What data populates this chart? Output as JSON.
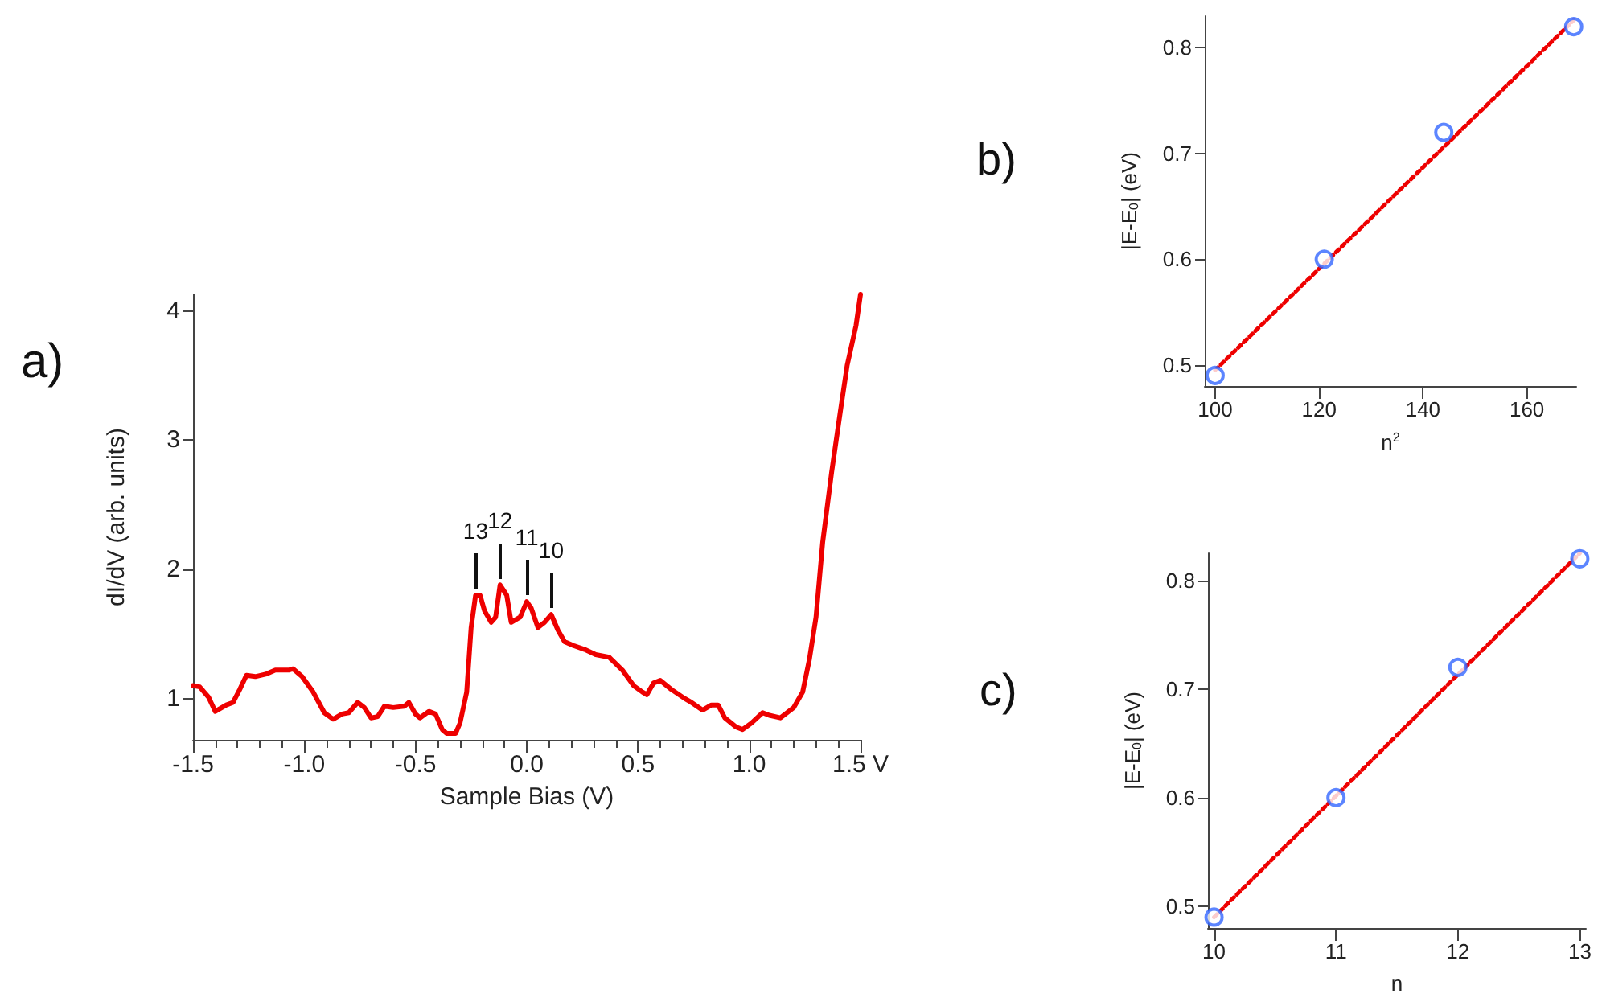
{
  "chart_data": [
    {
      "type": "line",
      "title": "a)",
      "xlabel": "Sample Bias (V)",
      "ylabel": "dI/dV (arb. units)",
      "color": "#ee0000",
      "marker": "none",
      "line_style": "solid",
      "x": [
        -1.5,
        -1.47,
        -1.43,
        -1.4,
        -1.35,
        -1.32,
        -1.29,
        -1.26,
        -1.22,
        -1.17,
        -1.13,
        -1.07,
        -1.05,
        -1.01,
        -0.96,
        -0.91,
        -0.87,
        -0.83,
        -0.8,
        -0.76,
        -0.73,
        -0.7,
        -0.67,
        -0.64,
        -0.6,
        -0.55,
        -0.53,
        -0.5,
        -0.48,
        -0.44,
        -0.41,
        -0.38,
        -0.36,
        -0.32,
        -0.3,
        -0.27,
        -0.25,
        -0.23,
        -0.21,
        -0.19,
        -0.16,
        -0.14,
        -0.12,
        -0.09,
        -0.07,
        -0.03,
        0.0,
        0.02,
        0.05,
        0.08,
        0.11,
        0.14,
        0.17,
        0.21,
        0.26,
        0.31,
        0.37,
        0.43,
        0.48,
        0.52,
        0.54,
        0.57,
        0.6,
        0.65,
        0.71,
        0.74,
        0.79,
        0.83,
        0.86,
        0.89,
        0.94,
        0.97,
        1.01,
        1.06,
        1.09,
        1.14,
        1.2,
        1.24,
        1.27,
        1.3,
        1.33,
        1.37,
        1.41,
        1.44,
        1.48,
        1.5
      ],
      "values": [
        1.1,
        1.09,
        1.01,
        0.9,
        0.95,
        0.97,
        1.07,
        1.18,
        1.17,
        1.19,
        1.22,
        1.22,
        1.23,
        1.17,
        1.05,
        0.89,
        0.84,
        0.88,
        0.89,
        0.97,
        0.93,
        0.85,
        0.86,
        0.94,
        0.93,
        0.94,
        0.97,
        0.88,
        0.85,
        0.9,
        0.88,
        0.76,
        0.73,
        0.73,
        0.81,
        1.05,
        1.55,
        1.8,
        1.8,
        1.68,
        1.59,
        1.63,
        1.88,
        1.8,
        1.59,
        1.63,
        1.75,
        1.7,
        1.55,
        1.59,
        1.65,
        1.53,
        1.44,
        1.41,
        1.38,
        1.34,
        1.32,
        1.22,
        1.1,
        1.05,
        1.03,
        1.12,
        1.14,
        1.07,
        1.0,
        0.97,
        0.91,
        0.95,
        0.95,
        0.85,
        0.78,
        0.76,
        0.81,
        0.89,
        0.87,
        0.85,
        0.93,
        1.05,
        1.3,
        1.63,
        2.21,
        2.75,
        3.23,
        3.58,
        3.89,
        4.13
      ],
      "xlim": [
        -1.5,
        1.5
      ],
      "xticks": [
        {
          "value": -1.5,
          "label": "-1.5"
        },
        {
          "value": -1.0,
          "label": "-1.0"
        },
        {
          "value": -0.5,
          "label": "-0.5"
        },
        {
          "value": 0,
          "label": "0.0"
        },
        {
          "value": 0.5,
          "label": "0.5"
        },
        {
          "value": 1.0,
          "label": "1.0"
        },
        {
          "value": 1.5,
          "label": "1.5 V"
        }
      ],
      "ylim": [
        0.68,
        4.13
      ],
      "yticks": [
        1,
        2,
        3,
        4
      ],
      "annotations": [
        {
          "text": "13",
          "x": -0.23,
          "y": 1.8
        },
        {
          "text": "12",
          "x": -0.12,
          "y": 1.88
        },
        {
          "text": "11",
          "x": 0.0,
          "y": 1.75
        },
        {
          "text": "10",
          "x": 0.11,
          "y": 1.65
        }
      ]
    },
    {
      "type": "scatter",
      "title": "b)",
      "xlabel": "n$^{2}$",
      "ylabel": "|E-E$_{0}$| (eV)",
      "series": [
        {
          "color": "#3366ff",
          "marker": "circle",
          "x": [
            100,
            121,
            144,
            169
          ],
          "values": [
            0.49,
            0.6,
            0.72,
            0.82
          ]
        },
        {
          "type": "line",
          "color": "#ee0000",
          "marker": "none",
          "line_style": "dotted",
          "x": [
            100,
            169
          ],
          "values": [
            0.495,
            0.826
          ]
        }
      ],
      "xlim": [
        98,
        169.5
      ],
      "xticks": [
        100,
        120,
        140,
        160
      ],
      "ylim": [
        0.48,
        0.83
      ],
      "yticks": [
        0.5,
        0.6,
        0.7,
        0.8
      ]
    },
    {
      "type": "scatter",
      "title": "c)",
      "xlabel": "n",
      "ylabel": "|E-E$_{0}$| (eV)",
      "series": [
        {
          "color": "#3366ff",
          "marker": "circle",
          "x": [
            10,
            11,
            12,
            13
          ],
          "values": [
            0.49,
            0.6,
            0.72,
            0.82
          ]
        },
        {
          "type": "line",
          "color": "#ee0000",
          "marker": "none",
          "line_style": "dotted",
          "x": [
            10,
            13
          ],
          "values": [
            0.49,
            0.825
          ]
        }
      ],
      "xlim": [
        9.95,
        13.05
      ],
      "xticks": [
        10,
        11,
        12,
        13
      ],
      "ylim": [
        0.48,
        0.825
      ],
      "yticks": [
        0.5,
        0.6,
        0.7,
        0.8
      ]
    }
  ]
}
